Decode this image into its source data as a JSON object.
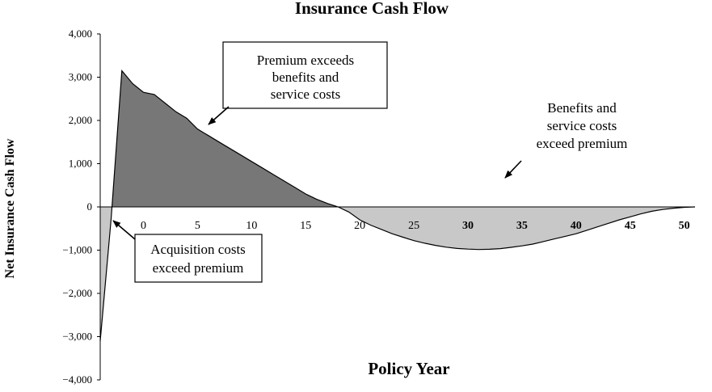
{
  "chart_data": {
    "type": "area",
    "title": "Insurance Cash Flow",
    "xlabel": "Policy Year",
    "ylabel": "Net Insurance Cash Flow",
    "xlim": [
      -4,
      51
    ],
    "ylim": [
      -4000,
      4000
    ],
    "y_ticks": [
      4000,
      3000,
      2000,
      1000,
      0,
      -1000,
      -2000,
      -3000,
      -4000
    ],
    "y_tick_labels": [
      "4,000",
      "3,000",
      "2,000",
      "1,000",
      "0",
      "−1,000",
      "−2,000",
      "−3,000",
      "−4,000"
    ],
    "x_ticks": [
      0,
      5,
      10,
      15,
      20,
      25,
      30,
      35,
      40,
      45,
      50
    ],
    "x_tick_labels": [
      "0",
      "5",
      "10",
      "15",
      "20",
      "25",
      "30",
      "35",
      "40",
      "45",
      "50"
    ],
    "x_tick_bold": [
      false,
      false,
      false,
      false,
      false,
      false,
      true,
      true,
      true,
      true,
      true
    ],
    "grid": false,
    "colors": {
      "positive": "#777777",
      "negative": "#c8c8c8",
      "line": "#000000"
    },
    "series": [
      {
        "x": [
          -4,
          -3,
          -2,
          -1,
          0,
          1,
          2,
          3,
          4,
          5,
          6,
          7,
          8,
          9,
          10,
          11,
          12,
          13,
          14,
          15,
          16,
          17,
          18,
          19,
          20,
          21,
          22,
          23,
          24,
          25,
          26,
          27,
          28,
          29,
          30,
          31,
          32,
          33,
          34,
          35,
          36,
          37,
          38,
          39,
          40,
          41,
          42,
          43,
          44,
          45,
          46,
          47,
          48,
          49,
          50,
          51
        ],
        "y": [
          -3100,
          -300,
          3150,
          2850,
          2650,
          2600,
          2400,
          2200,
          2050,
          1800,
          1650,
          1500,
          1350,
          1200,
          1050,
          900,
          750,
          600,
          450,
          300,
          180,
          80,
          0,
          -120,
          -300,
          -420,
          -520,
          -620,
          -700,
          -780,
          -840,
          -890,
          -930,
          -960,
          -975,
          -985,
          -980,
          -965,
          -935,
          -900,
          -860,
          -800,
          -740,
          -680,
          -620,
          -540,
          -460,
          -380,
          -300,
          -230,
          -160,
          -100,
          -60,
          -30,
          -10,
          0
        ]
      }
    ],
    "annotations": [
      {
        "text": [
          "Premium exceeds",
          "benefits and",
          "service costs"
        ],
        "boxed": true,
        "points_to": [
          6,
          1700
        ]
      },
      {
        "text": [
          "Benefits and",
          "service costs",
          "exceed premium"
        ],
        "boxed": false,
        "points_to": [
          33,
          -500
        ]
      },
      {
        "text": [
          "Acquisition costs",
          "exceed premium"
        ],
        "boxed": true,
        "points_to": [
          -3,
          -550
        ]
      }
    ]
  }
}
